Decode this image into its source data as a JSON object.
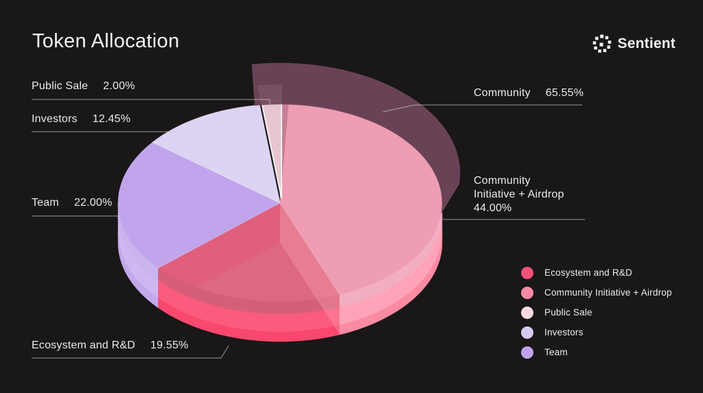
{
  "page": {
    "title": "Token Allocation",
    "background": "#191717"
  },
  "brand": {
    "name": "Sentient"
  },
  "chart_data": {
    "type": "pie",
    "title": "Token Allocation",
    "unit": "%",
    "style": "3d-tilted-pie",
    "slices": [
      {
        "label": "Community Initiative + Airdrop",
        "value": 44.0,
        "display": "44.00%",
        "colors": {
          "face": "#EE9DB3",
          "mid": "#F2AFC2",
          "bright": "#FFA3B9",
          "deep": "#FB8AA3"
        }
      },
      {
        "label": "Ecosystem and R&D",
        "value": 19.55,
        "display": "19.55%",
        "colors": {
          "face": "#DE6781",
          "mid": "#D55F78",
          "bright": "#FB5B7C",
          "deep": "#F8486D"
        }
      },
      {
        "label": "Team",
        "value": 22.0,
        "display": "22.00%",
        "colors": {
          "face": "#C1A5EC",
          "mid": "#C9B4EE",
          "bright": "#CFB8F1",
          "deep": "#C3A8EC"
        }
      },
      {
        "label": "Investors",
        "value": 12.45,
        "display": "12.45%",
        "colors": {
          "face": "#DDD3F2",
          "mid": "#DDD3F2",
          "bright": "#DDD3F2",
          "deep": "#DDD3F2"
        }
      },
      {
        "label": "Public Sale",
        "value": 2.0,
        "display": "2.00%",
        "colors": {
          "face": "#E8C6D1",
          "mid": "#E8C6D1",
          "bright": "#E8C6D1",
          "deep": "#E8C6D1"
        }
      }
    ],
    "overlay_group": {
      "label": "Community",
      "value": 65.55,
      "display": "65.55%",
      "includes": [
        "Public Sale",
        "Community Initiative + Airdrop",
        "Ecosystem and R&D"
      ],
      "color": "#70475A"
    },
    "legend_position": "bottom-right",
    "legend": [
      {
        "label": "Ecosystem and R&D",
        "color": "#F2527A"
      },
      {
        "label": "Community Initiative + Airdrop",
        "color": "#F48BA4"
      },
      {
        "label": "Public Sale",
        "color": "#FBD9DF"
      },
      {
        "label": "Investors",
        "color": "#D6C9F0"
      },
      {
        "label": "Team",
        "color": "#BFA2EC"
      }
    ]
  },
  "callouts": {
    "public_sale": {
      "label": "Public Sale",
      "value": "2.00%"
    },
    "investors": {
      "label": "Investors",
      "value": "12.45%"
    },
    "team": {
      "label": "Team",
      "value": "22.00%"
    },
    "ecosystem": {
      "label": "Ecosystem and R&D",
      "value": "19.55%"
    },
    "community": {
      "label": "Community",
      "value": "65.55%"
    },
    "community_initiative": {
      "line1": "Community",
      "line2": "Initiative + Airdrop",
      "line3": "44.00%"
    }
  }
}
